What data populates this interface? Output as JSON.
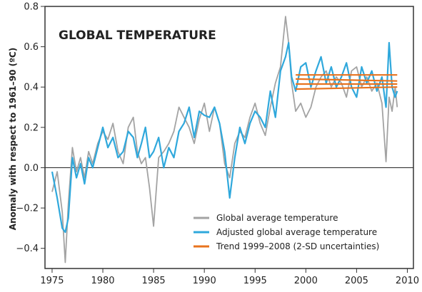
{
  "chart_data": {
    "type": "line",
    "title": "GLOBAL TEMPERATURE",
    "xlabel": "",
    "ylabel": "Anomaly with respect to 1961–90 (ºC)",
    "xlim": [
      1974.3,
      2010.6
    ],
    "ylim": [
      -0.5,
      0.8
    ],
    "x_ticks": [
      1975,
      1980,
      1985,
      1990,
      1995,
      2000,
      2005,
      2010
    ],
    "y_ticks": [
      -0.4,
      -0.2,
      0.0,
      0.2,
      0.4,
      0.6,
      0.8
    ],
    "y_tick_labels": [
      "−0.4",
      "−0.2",
      "0.0",
      "0.2",
      "0.4",
      "0.6",
      "0.8"
    ],
    "zero_line": 0.0,
    "legend_position": "bottom-right",
    "colors": {
      "global": "#a3a3a3",
      "adjusted": "#2fa8dc",
      "trend": "#e8731e"
    },
    "series": [
      {
        "name": "Global average temperature",
        "key": "global",
        "x": [
          1975.0,
          1975.5,
          1976.0,
          1976.3,
          1976.6,
          1977.0,
          1977.4,
          1977.8,
          1978.2,
          1978.6,
          1979.0,
          1979.5,
          1980.0,
          1980.5,
          1981.0,
          1981.5,
          1982.0,
          1982.5,
          1983.0,
          1983.4,
          1983.8,
          1984.2,
          1984.6,
          1985.0,
          1985.5,
          1986.0,
          1986.5,
          1987.0,
          1987.5,
          1988.0,
          1988.5,
          1989.0,
          1989.5,
          1990.0,
          1990.5,
          1991.0,
          1991.5,
          1992.0,
          1992.5,
          1993.0,
          1993.5,
          1994.0,
          1994.5,
          1995.0,
          1995.5,
          1996.0,
          1996.5,
          1997.0,
          1997.5,
          1998.0,
          1998.3,
          1998.6,
          1999.0,
          1999.5,
          2000.0,
          2000.5,
          2001.0,
          2001.5,
          2002.0,
          2002.5,
          2003.0,
          2003.5,
          2004.0,
          2004.5,
          2005.0,
          2005.5,
          2006.0,
          2006.5,
          2007.0,
          2007.5,
          2007.9,
          2008.2,
          2008.5,
          2008.8,
          2009.0
        ],
        "y": [
          -0.12,
          -0.02,
          -0.22,
          -0.47,
          -0.18,
          0.1,
          -0.02,
          0.05,
          -0.05,
          0.08,
          0.02,
          0.12,
          0.18,
          0.14,
          0.22,
          0.08,
          0.02,
          0.2,
          0.25,
          0.08,
          0.02,
          0.05,
          -0.1,
          -0.29,
          0.05,
          0.08,
          0.12,
          0.18,
          0.3,
          0.25,
          0.2,
          0.12,
          0.24,
          0.32,
          0.18,
          0.3,
          0.22,
          0.02,
          -0.05,
          0.12,
          0.18,
          0.15,
          0.25,
          0.32,
          0.22,
          0.16,
          0.3,
          0.42,
          0.5,
          0.75,
          0.62,
          0.42,
          0.28,
          0.32,
          0.25,
          0.3,
          0.4,
          0.45,
          0.48,
          0.4,
          0.45,
          0.42,
          0.35,
          0.48,
          0.5,
          0.4,
          0.45,
          0.38,
          0.42,
          0.32,
          0.03,
          0.35,
          0.28,
          0.4,
          0.3
        ]
      },
      {
        "name": "Adjusted global average temperature",
        "key": "adjusted",
        "x": [
          1975.0,
          1975.5,
          1976.0,
          1976.3,
          1976.6,
          1977.0,
          1977.4,
          1977.8,
          1978.2,
          1978.6,
          1979.0,
          1979.5,
          1980.0,
          1980.5,
          1981.0,
          1981.5,
          1982.0,
          1982.5,
          1983.0,
          1983.4,
          1983.8,
          1984.2,
          1984.6,
          1985.0,
          1985.5,
          1986.0,
          1986.5,
          1987.0,
          1987.5,
          1988.0,
          1988.5,
          1989.0,
          1989.5,
          1990.0,
          1990.5,
          1991.0,
          1991.5,
          1992.0,
          1992.5,
          1993.0,
          1993.5,
          1994.0,
          1994.5,
          1995.0,
          1995.5,
          1996.0,
          1996.5,
          1997.0,
          1997.5,
          1998.0,
          1998.3,
          1998.6,
          1999.0,
          1999.5,
          2000.0,
          2000.5,
          2001.0,
          2001.5,
          2002.0,
          2002.5,
          2003.0,
          2003.5,
          2004.0,
          2004.5,
          2005.0,
          2005.5,
          2006.0,
          2006.5,
          2007.0,
          2007.5,
          2007.9,
          2008.2,
          2008.5,
          2008.8,
          2009.0
        ],
        "y": [
          -0.02,
          -0.15,
          -0.3,
          -0.32,
          -0.25,
          0.05,
          -0.05,
          0.02,
          -0.08,
          0.05,
          0.0,
          0.1,
          0.2,
          0.1,
          0.15,
          0.05,
          0.08,
          0.18,
          0.15,
          0.05,
          0.12,
          0.2,
          0.05,
          0.08,
          0.15,
          0.0,
          0.1,
          0.05,
          0.18,
          0.22,
          0.3,
          0.15,
          0.28,
          0.26,
          0.25,
          0.3,
          0.22,
          0.08,
          -0.15,
          0.05,
          0.2,
          0.12,
          0.22,
          0.28,
          0.25,
          0.2,
          0.38,
          0.25,
          0.48,
          0.55,
          0.62,
          0.45,
          0.38,
          0.5,
          0.52,
          0.4,
          0.48,
          0.55,
          0.42,
          0.5,
          0.4,
          0.45,
          0.52,
          0.4,
          0.35,
          0.5,
          0.42,
          0.48,
          0.38,
          0.45,
          0.3,
          0.62,
          0.4,
          0.35,
          0.38
        ]
      },
      {
        "name": "Trend 1999–2008 (2-SD uncertainties)",
        "key": "trend",
        "lines": [
          {
            "x": [
              1999.0,
              2009.0
            ],
            "y": [
              0.46,
              0.46
            ]
          },
          {
            "x": [
              1999.0,
              2009.0
            ],
            "y": [
              0.44,
              0.43
            ]
          },
          {
            "x": [
              1999.0,
              2009.0
            ],
            "y": [
              0.415,
              0.415
            ]
          },
          {
            "x": [
              1999.0,
              2009.0
            ],
            "y": [
              0.39,
              0.4
            ]
          }
        ]
      }
    ]
  }
}
